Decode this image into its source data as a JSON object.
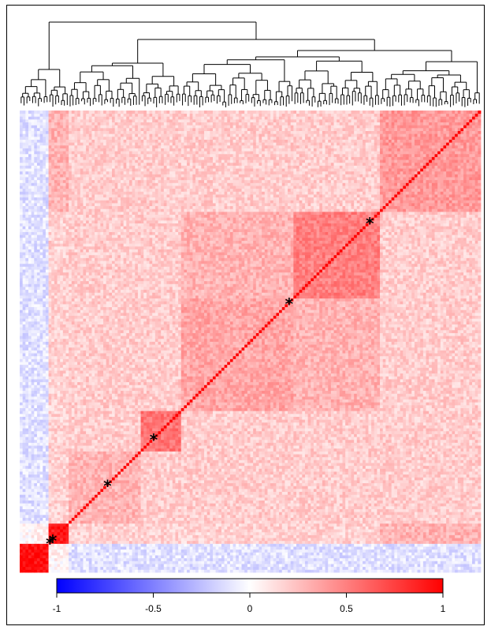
{
  "chart_data": {
    "type": "heatmap",
    "title": "",
    "xlabel": "",
    "ylabel": "",
    "n_variables": 160,
    "diagonal_value": 1,
    "has_dendrogram": true,
    "colorbar": {
      "range": [
        -1,
        1
      ],
      "ticks": [
        {
          "value": -1,
          "label": "-1"
        },
        {
          "value": -0.5,
          "label": "-0.5"
        },
        {
          "value": 0,
          "label": "0"
        },
        {
          "value": 0.5,
          "label": "0.5"
        },
        {
          "value": 1,
          "label": "1"
        }
      ],
      "low_color": "#0000ff",
      "mid_color": "#ffffff",
      "high_color": "#ff0000",
      "orientation": "horizontal"
    },
    "clusters": [
      {
        "start": 0,
        "end": 10,
        "within_value": 0.95,
        "marker": true
      },
      {
        "start": 10,
        "end": 17,
        "within_value": 0.9,
        "marker": true
      },
      {
        "start": 17,
        "end": 42,
        "within_value": 0.3,
        "marker": true
      },
      {
        "start": 42,
        "end": 56,
        "within_value": 0.55,
        "marker": true
      },
      {
        "start": 56,
        "end": 95,
        "within_value": 0.35,
        "marker": true
      },
      {
        "start": 95,
        "end": 125,
        "within_value": 0.5,
        "marker": true
      },
      {
        "start": 125,
        "end": 160,
        "within_value": 0.4,
        "marker": false
      }
    ],
    "markers": [
      {
        "index": 10,
        "symbol": "*"
      },
      {
        "index": 11,
        "symbol": "*"
      },
      {
        "index": 30,
        "symbol": "*"
      },
      {
        "index": 46,
        "symbol": "*"
      },
      {
        "index": 93,
        "symbol": "*"
      },
      {
        "index": 121,
        "symbol": "*"
      }
    ]
  }
}
